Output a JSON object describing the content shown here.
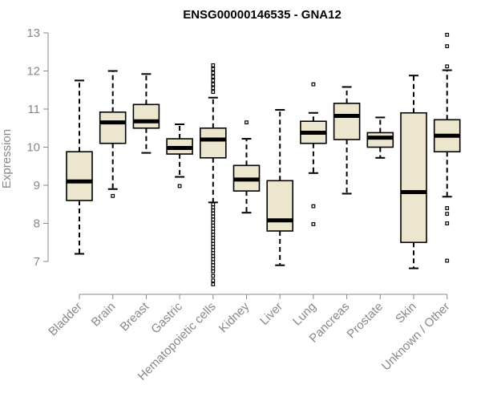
{
  "chart_data": {
    "type": "boxplot",
    "title": "ENSG00000146535 - GNA12",
    "xlabel": "",
    "ylabel": "Expression",
    "ylim": [
      6.8,
      13.0
    ],
    "yticks": [
      7,
      8,
      9,
      10,
      11,
      12,
      13
    ],
    "colors": {
      "box_fill": "#ede6cf",
      "stroke": "#000000",
      "axis": "#888888",
      "title": "#000000"
    },
    "categories": [
      "Bladder",
      "Brain",
      "Breast",
      "Gastric",
      "Hematopoietic cells",
      "Kidney",
      "Liver",
      "Lung",
      "Pancreas",
      "Prostate",
      "Skin",
      "Unknown / Other"
    ],
    "series": [
      {
        "name": "Bladder",
        "whisker_low": 7.2,
        "q1": 8.6,
        "median": 9.1,
        "q3": 9.88,
        "whisker_high": 11.75,
        "outliers": []
      },
      {
        "name": "Brain",
        "whisker_low": 8.9,
        "q1": 10.1,
        "median": 10.65,
        "q3": 10.92,
        "whisker_high": 12.0,
        "outliers": [
          8.72
        ]
      },
      {
        "name": "Breast",
        "whisker_low": 9.85,
        "q1": 10.5,
        "median": 10.68,
        "q3": 11.12,
        "whisker_high": 11.92,
        "outliers": []
      },
      {
        "name": "Gastric",
        "whisker_low": 9.22,
        "q1": 9.82,
        "median": 9.98,
        "q3": 10.22,
        "whisker_high": 10.6,
        "outliers": [
          8.98
        ]
      },
      {
        "name": "Hematopoietic cells",
        "whisker_low": 8.55,
        "q1": 9.72,
        "median": 10.2,
        "q3": 10.5,
        "whisker_high": 11.3,
        "outliers": [
          12.15,
          12.05,
          11.95,
          11.85,
          11.75,
          11.65,
          11.55,
          11.45,
          8.5,
          8.42,
          8.34,
          8.26,
          8.18,
          8.1,
          8.02,
          7.94,
          7.86,
          7.78,
          7.7,
          7.62,
          7.54,
          7.46,
          7.38,
          7.3,
          7.22,
          7.14,
          7.06,
          6.98,
          6.9,
          6.82,
          6.74,
          6.62,
          6.5,
          6.4
        ]
      },
      {
        "name": "Kidney",
        "whisker_low": 8.28,
        "q1": 8.85,
        "median": 9.15,
        "q3": 9.52,
        "whisker_high": 10.22,
        "outliers": [
          10.65
        ]
      },
      {
        "name": "Liver",
        "whisker_low": 6.9,
        "q1": 7.8,
        "median": 8.08,
        "q3": 9.12,
        "whisker_high": 10.98,
        "outliers": []
      },
      {
        "name": "Lung",
        "whisker_low": 9.32,
        "q1": 10.1,
        "median": 10.38,
        "q3": 10.68,
        "whisker_high": 10.9,
        "outliers": [
          11.65,
          8.45,
          7.98
        ]
      },
      {
        "name": "Pancreas",
        "whisker_low": 8.78,
        "q1": 10.2,
        "median": 10.82,
        "q3": 11.15,
        "whisker_high": 11.58,
        "outliers": []
      },
      {
        "name": "Prostate",
        "whisker_low": 9.72,
        "q1": 10.0,
        "median": 10.25,
        "q3": 10.38,
        "whisker_high": 10.78,
        "outliers": []
      },
      {
        "name": "Skin",
        "whisker_low": 6.82,
        "q1": 7.5,
        "median": 8.82,
        "q3": 10.9,
        "whisker_high": 11.88,
        "outliers": []
      },
      {
        "name": "Unknown / Other",
        "whisker_low": 8.7,
        "q1": 9.88,
        "median": 10.3,
        "q3": 10.72,
        "whisker_high": 12.02,
        "outliers": [
          12.95,
          12.65,
          12.12,
          8.4,
          8.25,
          8.0,
          7.02
        ]
      }
    ]
  }
}
